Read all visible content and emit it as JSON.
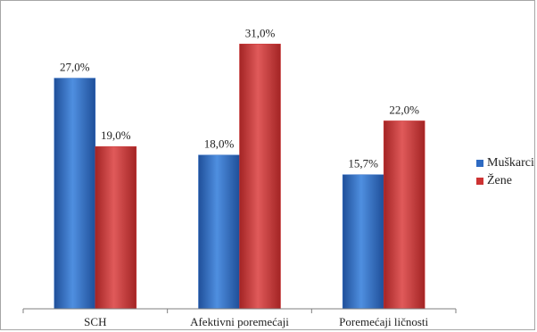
{
  "chart_data": {
    "type": "bar",
    "categories": [
      "SCH",
      "Afektivni poremećaji",
      "Poremećaji ličnosti"
    ],
    "series": [
      {
        "name": "Muškarci",
        "values": [
          27.0,
          18.0,
          15.7
        ],
        "labels": [
          "27,0%",
          "18,0%",
          "15,7%"
        ],
        "color": "#2e6ac2"
      },
      {
        "name": "Žene",
        "values": [
          19.0,
          31.0,
          22.0
        ],
        "labels": [
          "19,0%",
          "31,0%",
          "22,0%"
        ],
        "color": "#cd3333"
      }
    ],
    "ylim": [
      0,
      35
    ],
    "title": "",
    "xlabel": "",
    "ylabel": "",
    "grid": false,
    "legend_position": "right"
  }
}
